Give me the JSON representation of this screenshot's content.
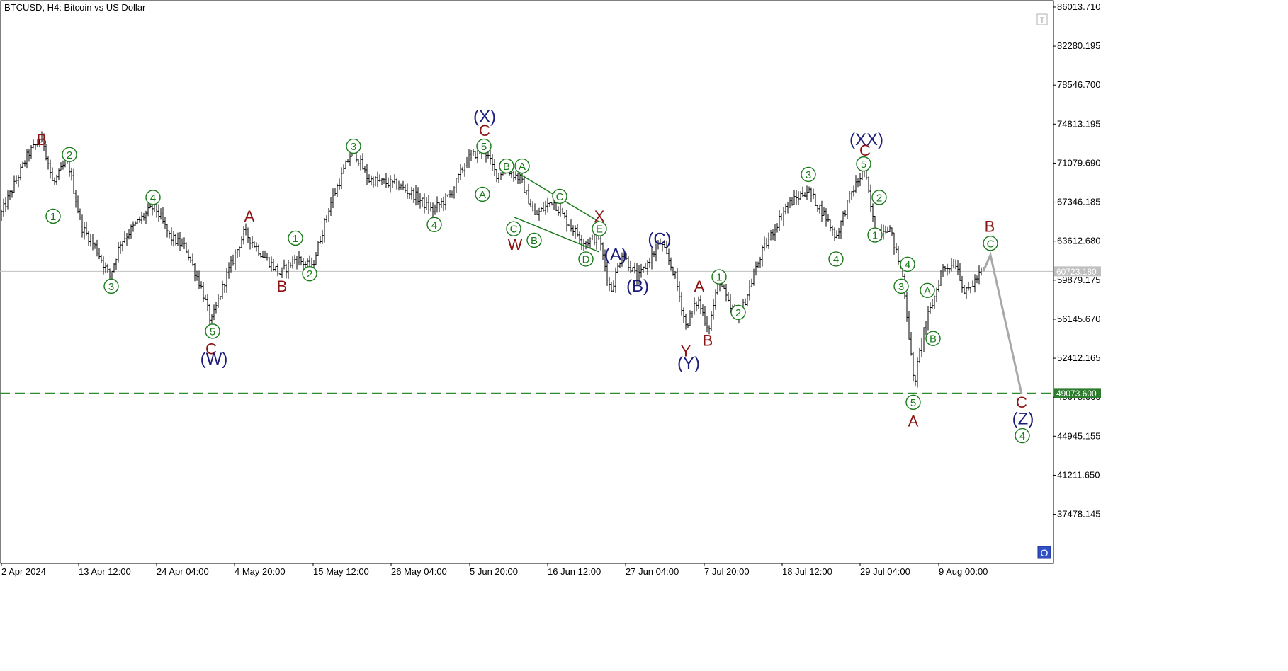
{
  "header": {
    "symbol_title": "BTCUSD, H4:  Bitcoin vs US Dollar"
  },
  "colors": {
    "price": "#000000",
    "green": "#1a7a1a",
    "darkred": "#8b1414",
    "navy": "#1c1c7a",
    "current_price_line": "#c0c0c0",
    "level_line": "#2e8b2e",
    "projection": "#a8a8a8",
    "current_price_tag": "#c0c0c0",
    "level_tag": "#2e7d2e"
  },
  "icons": {
    "top_right": "T",
    "bottom_right": "O"
  },
  "chart_data": {
    "type": "line",
    "title": "BTCUSD, H4:  Bitcoin vs US Dollar",
    "ylim": [
      34500,
      87500
    ],
    "y_ticks": [
      "86013.710",
      "82280.195",
      "78546.700",
      "74813.195",
      "71079.690",
      "67346.185",
      "63612.680",
      "59879.175",
      "56145.670",
      "52412.165",
      "48678.660",
      "44945.155",
      "41211.650",
      "37478.145"
    ],
    "x_ticks": [
      "2 Apr 2024",
      "13 Apr 12:00",
      "24 Apr 04:00",
      "4 May 20:00",
      "15 May 12:00",
      "26 May 04:00",
      "5 Jun 20:00",
      "16 Jun 12:00",
      "27 Jun 04:00",
      "7 Jul 20:00",
      "18 Jul 12:00",
      "29 Jul 04:00",
      "9 Aug 00:00"
    ],
    "current_price": {
      "value": 60723.18,
      "label": "60723.180"
    },
    "level": {
      "value": 49073.6,
      "label": "49073.600"
    },
    "series": [
      {
        "values": [
          [
            0,
            66000
          ],
          [
            20,
            69000
          ],
          [
            40,
            72000
          ],
          [
            60,
            73500
          ],
          [
            75,
            69000
          ],
          [
            95,
            71500
          ],
          [
            115,
            65000
          ],
          [
            135,
            63000
          ],
          [
            155,
            60200
          ],
          [
            170,
            63500
          ],
          [
            195,
            65500
          ],
          [
            218,
            67000
          ],
          [
            240,
            64000
          ],
          [
            262,
            63000
          ],
          [
            285,
            59000
          ],
          [
            298,
            55800
          ],
          [
            318,
            60000
          ],
          [
            345,
            64500
          ],
          [
            368,
            62500
          ],
          [
            395,
            60500
          ],
          [
            418,
            62000
          ],
          [
            440,
            61000
          ],
          [
            465,
            67000
          ],
          [
            498,
            72500
          ],
          [
            520,
            69500
          ],
          [
            560,
            69000
          ],
          [
            585,
            68000
          ],
          [
            610,
            66500
          ],
          [
            635,
            68000
          ],
          [
            660,
            71500
          ],
          [
            683,
            72500
          ],
          [
            700,
            70000
          ],
          [
            715,
            70500
          ],
          [
            735,
            69500
          ],
          [
            755,
            66000
          ],
          [
            780,
            67500
          ],
          [
            800,
            65500
          ],
          [
            825,
            63500
          ],
          [
            845,
            64000
          ],
          [
            862,
            58800
          ],
          [
            878,
            62500
          ],
          [
            900,
            60000
          ],
          [
            932,
            63500
          ],
          [
            952,
            60500
          ],
          [
            968,
            55500
          ],
          [
            985,
            58000
          ],
          [
            1000,
            55200
          ],
          [
            1015,
            60000
          ],
          [
            1030,
            57200
          ],
          [
            1045,
            56600
          ],
          [
            1075,
            62500
          ],
          [
            1110,
            67000
          ],
          [
            1140,
            68500
          ],
          [
            1165,
            66000
          ],
          [
            1180,
            64000
          ],
          [
            1200,
            68000
          ],
          [
            1220,
            70500
          ],
          [
            1235,
            64500
          ],
          [
            1255,
            65000
          ],
          [
            1275,
            60000
          ],
          [
            1290,
            49800
          ],
          [
            1305,
            55500
          ],
          [
            1318,
            58000
          ],
          [
            1330,
            61000
          ],
          [
            1350,
            61500
          ],
          [
            1362,
            58500
          ],
          [
            1378,
            60000
          ],
          [
            1388,
            60900
          ]
        ]
      },
      {
        "name": "projection",
        "values": [
          [
            1388,
            60723
          ],
          [
            1398,
            62300
          ],
          [
            1442,
            49000
          ]
        ]
      }
    ]
  },
  "waves": [
    {
      "t": "B",
      "c": "darkred",
      "s": "plain",
      "tx": 59,
      "y": 73300
    },
    {
      "t": "2",
      "c": "green",
      "s": "circle",
      "tx": 98,
      "y": 71900
    },
    {
      "t": "1",
      "c": "green",
      "s": "circle",
      "tx": 75,
      "y": 66000
    },
    {
      "t": "3",
      "c": "green",
      "s": "circle",
      "tx": 157,
      "y": 59300
    },
    {
      "t": "4",
      "c": "green",
      "s": "circle",
      "tx": 216,
      "y": 67800
    },
    {
      "t": "5",
      "c": "green",
      "s": "circle",
      "tx": 300,
      "y": 55000
    },
    {
      "t": "C",
      "c": "darkred",
      "s": "plain",
      "tx": 298,
      "y": 53300
    },
    {
      "t": "(W)",
      "c": "navy",
      "s": "plain",
      "tx": 302,
      "y": 52300
    },
    {
      "t": "A",
      "c": "darkred",
      "s": "plain",
      "tx": 352,
      "y": 66000
    },
    {
      "t": "B",
      "c": "darkred",
      "s": "plain",
      "tx": 398,
      "y": 59300
    },
    {
      "t": "1",
      "c": "green",
      "s": "circle",
      "tx": 417,
      "y": 63900
    },
    {
      "t": "2",
      "c": "green",
      "s": "circle",
      "tx": 437,
      "y": 60500
    },
    {
      "t": "3",
      "c": "green",
      "s": "circle",
      "tx": 499,
      "y": 72700
    },
    {
      "t": "4",
      "c": "green",
      "s": "circle",
      "tx": 613,
      "y": 65200
    },
    {
      "t": "(X)",
      "c": "navy",
      "s": "plain",
      "tx": 684,
      "y": 75500
    },
    {
      "t": "C",
      "c": "darkred",
      "s": "plain",
      "tx": 684,
      "y": 74200
    },
    {
      "t": "5",
      "c": "green",
      "s": "circle",
      "tx": 683,
      "y": 72700
    },
    {
      "t": "A",
      "c": "green",
      "s": "circle",
      "tx": 681,
      "y": 68100
    },
    {
      "t": "B",
      "c": "green",
      "s": "circle",
      "tx": 715,
      "y": 70800
    },
    {
      "t": "A",
      "c": "green",
      "s": "circle",
      "tx": 737,
      "y": 70800
    },
    {
      "t": "C",
      "c": "green",
      "s": "circle",
      "tx": 790,
      "y": 67900
    },
    {
      "t": "X",
      "c": "darkred",
      "s": "plain",
      "tx": 846,
      "y": 66000
    },
    {
      "t": "E",
      "c": "green",
      "s": "circle",
      "tx": 846,
      "y": 64800
    },
    {
      "t": "C",
      "c": "green",
      "s": "circle",
      "tx": 725,
      "y": 64800
    },
    {
      "t": "W",
      "c": "darkred",
      "s": "plain",
      "tx": 727,
      "y": 63300
    },
    {
      "t": "B",
      "c": "green",
      "s": "circle",
      "tx": 754,
      "y": 63700
    },
    {
      "t": "D",
      "c": "green",
      "s": "circle",
      "tx": 827,
      "y": 61900
    },
    {
      "t": "(A)",
      "c": "navy",
      "s": "plain",
      "tx": 869,
      "y": 62300
    },
    {
      "t": "(C)",
      "c": "navy",
      "s": "plain",
      "tx": 931,
      "y": 63800
    },
    {
      "t": "(B)",
      "c": "navy",
      "s": "plain",
      "tx": 900,
      "y": 59300
    },
    {
      "t": "A",
      "c": "darkred",
      "s": "plain",
      "tx": 987,
      "y": 59300
    },
    {
      "t": "1",
      "c": "green",
      "s": "circle",
      "tx": 1015,
      "y": 60200
    },
    {
      "t": "2",
      "c": "green",
      "s": "circle",
      "tx": 1042,
      "y": 56800
    },
    {
      "t": "Y",
      "c": "darkred",
      "s": "plain",
      "tx": 968,
      "y": 53100
    },
    {
      "t": "(Y)",
      "c": "navy",
      "s": "plain",
      "tx": 972,
      "y": 51900
    },
    {
      "t": "B",
      "c": "darkred",
      "s": "plain",
      "tx": 999,
      "y": 54100
    },
    {
      "t": "3",
      "c": "green",
      "s": "circle",
      "tx": 1141,
      "y": 70000
    },
    {
      "t": "4",
      "c": "green",
      "s": "circle",
      "tx": 1180,
      "y": 61900
    },
    {
      "t": "(XX)",
      "c": "navy",
      "s": "plain",
      "tx": 1223,
      "y": 73300
    },
    {
      "t": "C",
      "c": "darkred",
      "s": "plain",
      "tx": 1221,
      "y": 72300
    },
    {
      "t": "5",
      "c": "green",
      "s": "circle",
      "tx": 1219,
      "y": 71000
    },
    {
      "t": "2",
      "c": "green",
      "s": "circle",
      "tx": 1241,
      "y": 67800
    },
    {
      "t": "1",
      "c": "green",
      "s": "circle",
      "tx": 1235,
      "y": 64200
    },
    {
      "t": "4",
      "c": "green",
      "s": "circle",
      "tx": 1281,
      "y": 61400
    },
    {
      "t": "3",
      "c": "green",
      "s": "circle",
      "tx": 1272,
      "y": 59300
    },
    {
      "t": "A",
      "c": "green",
      "s": "circle",
      "tx": 1309,
      "y": 58900
    },
    {
      "t": "B",
      "c": "green",
      "s": "circle",
      "tx": 1317,
      "y": 54300
    },
    {
      "t": "5",
      "c": "green",
      "s": "circle",
      "tx": 1289,
      "y": 48200
    },
    {
      "t": "A",
      "c": "darkred",
      "s": "plain",
      "tx": 1289,
      "y": 46400
    },
    {
      "t": "B",
      "c": "darkred",
      "s": "plain",
      "tx": 1397,
      "y": 65000
    },
    {
      "t": "C",
      "c": "green",
      "s": "circle",
      "tx": 1398,
      "y": 63400
    },
    {
      "t": "C",
      "c": "darkred",
      "s": "plain",
      "tx": 1442,
      "y": 48200
    },
    {
      "t": "(Z)",
      "c": "navy",
      "s": "plain",
      "tx": 1444,
      "y": 46600
    },
    {
      "t": "4",
      "c": "green",
      "s": "circle",
      "tx": 1443,
      "y": 45000
    }
  ],
  "trendlines": [
    {
      "from": [
        732,
        70100
      ],
      "to": [
        845,
        65500
      ]
    },
    {
      "from": [
        726,
        65900
      ],
      "to": [
        845,
        62600
      ]
    }
  ]
}
